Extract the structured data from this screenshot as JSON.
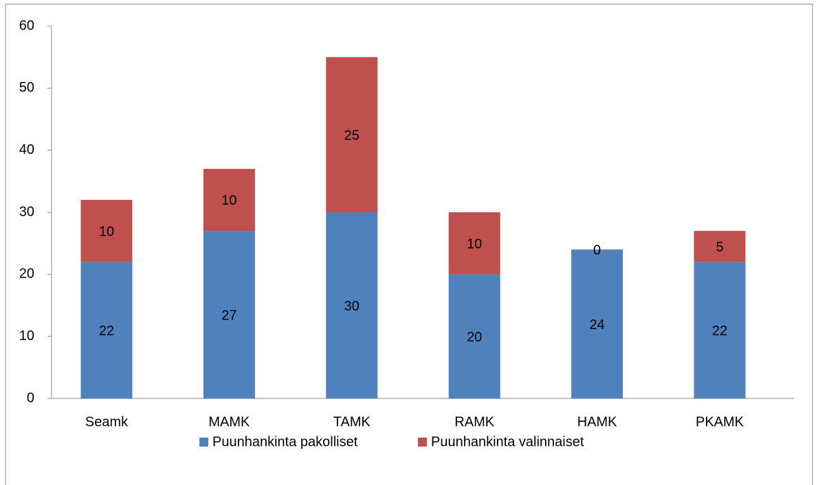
{
  "chart_data": {
    "type": "stacked_bar",
    "categories": [
      "Seamk",
      "MAMK",
      "TAMK",
      "RAMK",
      "HAMK",
      "PKAMK"
    ],
    "series": [
      {
        "name": "Puunhankinta pakolliset",
        "color": "#4f81bd",
        "values": [
          22,
          27,
          30,
          20,
          24,
          22
        ]
      },
      {
        "name": "Puunhankinta valinnaiset",
        "color": "#c0504d",
        "values": [
          10,
          10,
          25,
          10,
          0,
          5
        ]
      }
    ],
    "ylim": [
      0,
      60
    ],
    "yticks": [
      0,
      10,
      20,
      30,
      40,
      50,
      60
    ],
    "grid": false,
    "legend": "bottom"
  }
}
